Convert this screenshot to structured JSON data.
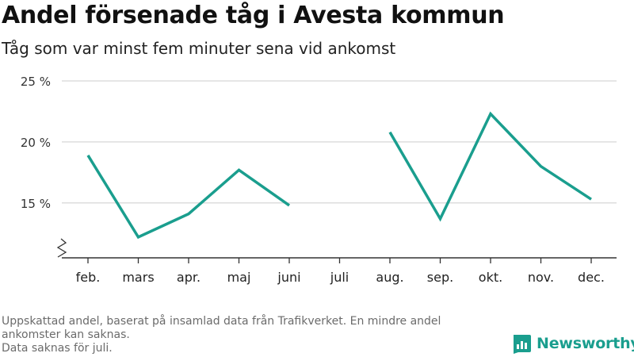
{
  "title": "Andel försenade tåg i Avesta kommun",
  "subtitle": "Tåg som var minst fem minuter sena vid ankomst",
  "footnote": {
    "line1": "Uppskattad andel, baserat på insamlad data från Trafikverket. En mindre andel ankomster kan saknas.",
    "line2": "Data saknas för juli."
  },
  "brand": {
    "name": "Newsworthy",
    "icon": "newsworthy-logo-icon"
  },
  "colors": {
    "line": "#1a9e8e",
    "grid": "#dddddd",
    "axis": "#333333",
    "brand": "#1a9e8e"
  },
  "chart_data": {
    "type": "line",
    "categories": [
      "feb.",
      "mars",
      "apr.",
      "maj",
      "juni",
      "juli",
      "aug.",
      "sep.",
      "okt.",
      "nov.",
      "dec."
    ],
    "series": [
      {
        "values": [
          18.9,
          12.2,
          14.1,
          17.7,
          14.8,
          null,
          20.8,
          13.7,
          22.3,
          18.0,
          15.3
        ]
      }
    ],
    "y_ticks": [
      {
        "value": 15,
        "label": "15 %"
      },
      {
        "value": 20,
        "label": "20 %"
      },
      {
        "value": 25,
        "label": "25 %"
      }
    ],
    "ylim": [
      10.5,
      25
    ],
    "y_axis_break": true,
    "grid": true,
    "xlabel": "",
    "ylabel": ""
  }
}
